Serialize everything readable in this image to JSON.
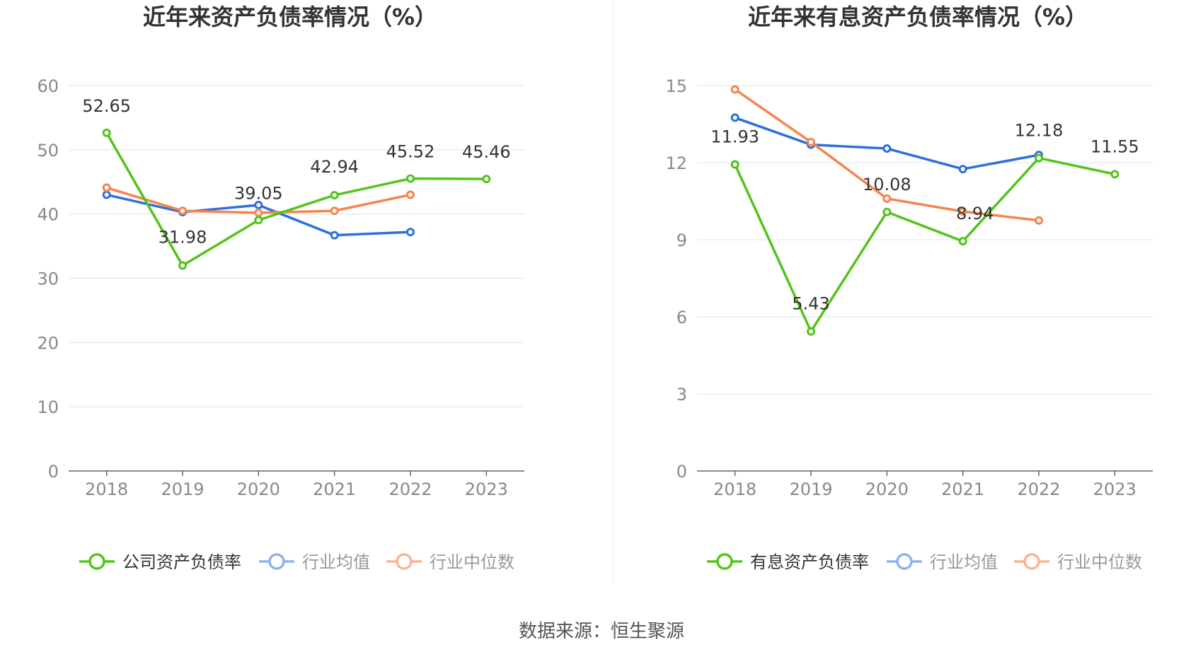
{
  "source": "数据来源：恒生聚源",
  "chart_data": [
    {
      "type": "line",
      "title": "近年来资产负债率情况（%）",
      "categories": [
        "2018",
        "2019",
        "2020",
        "2021",
        "2022",
        "2023"
      ],
      "ylim": [
        0,
        60
      ],
      "yticks": [
        0,
        10,
        20,
        30,
        40,
        50,
        60
      ],
      "grid": true,
      "legend_position": "bottom",
      "series": [
        {
          "name": "公司资产负债率",
          "color": "#52c41a",
          "labeled": true,
          "values": [
            52.65,
            31.98,
            39.05,
            42.94,
            45.52,
            45.46
          ],
          "labels": [
            "52.65",
            "31.98",
            "39.05",
            "42.94",
            "45.52",
            "45.46"
          ]
        },
        {
          "name": "行业均值",
          "color": "#2f6fdb",
          "legend_color": "#8fb2ef",
          "labeled": false,
          "values": [
            43.0,
            40.3,
            41.4,
            36.7,
            37.2,
            null
          ]
        },
        {
          "name": "行业中位数",
          "color": "#f4854f",
          "legend_color": "#f8b592",
          "labeled": false,
          "values": [
            44.1,
            40.5,
            40.2,
            40.5,
            43.0,
            null
          ]
        }
      ]
    },
    {
      "type": "line",
      "title": "近年来有息资产负债率情况（%）",
      "categories": [
        "2018",
        "2019",
        "2020",
        "2021",
        "2022",
        "2023"
      ],
      "ylim": [
        0,
        15
      ],
      "yticks": [
        0,
        3,
        6,
        9,
        12,
        15
      ],
      "grid": true,
      "legend_position": "bottom",
      "series": [
        {
          "name": "有息资产负债率",
          "color": "#52c41a",
          "labeled": true,
          "values": [
            11.93,
            5.43,
            10.08,
            8.94,
            12.18,
            11.55
          ],
          "labels": [
            "11.93",
            "5.43",
            "10.08",
            "8.94",
            "12.18",
            "11.55"
          ]
        },
        {
          "name": "行业均值",
          "color": "#2f6fdb",
          "legend_color": "#8fb2ef",
          "labeled": false,
          "values": [
            13.75,
            12.7,
            12.55,
            11.75,
            12.3,
            null
          ]
        },
        {
          "name": "行业中位数",
          "color": "#f4854f",
          "legend_color": "#f8b592",
          "labeled": false,
          "values": [
            14.85,
            12.8,
            10.6,
            10.1,
            9.75,
            null
          ]
        }
      ]
    }
  ]
}
